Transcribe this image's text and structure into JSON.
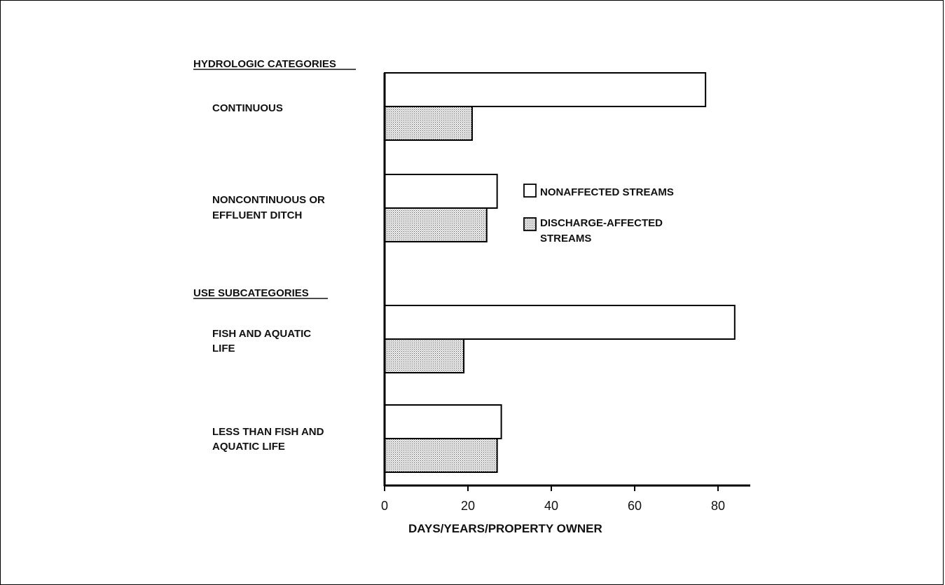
{
  "chart_data": {
    "type": "bar",
    "orientation": "horizontal",
    "section_headers": [
      "HYDROLOGIC CATEGORIES",
      "USE SUBCATEGORIES"
    ],
    "categories": [
      [
        "CONTINUOUS"
      ],
      [
        "NONCONTINUOUS OR",
        "EFFLUENT DITCH"
      ],
      [
        "FISH AND AQUATIC",
        "LIFE"
      ],
      [
        "LESS THAN FISH AND",
        "AQUATIC LIFE"
      ]
    ],
    "series": [
      {
        "name": "NONAFFECTED STREAMS",
        "fill": "white",
        "values": [
          77,
          27,
          84,
          28
        ]
      },
      {
        "name": "DISCHARGE-AFFECTED STREAMS",
        "fill": "stipple",
        "values": [
          21,
          24.5,
          19,
          27
        ]
      }
    ],
    "legend_lines": [
      [
        "NONAFFECTED STREAMS"
      ],
      [
        "DISCHARGE-AFFECTED",
        "STREAMS"
      ]
    ],
    "xlabel": "DAYS/YEARS/PROPERTY OWNER",
    "xticks": [
      0,
      20,
      40,
      60,
      80
    ],
    "xlim": [
      0,
      88
    ],
    "legend_position": "center"
  }
}
